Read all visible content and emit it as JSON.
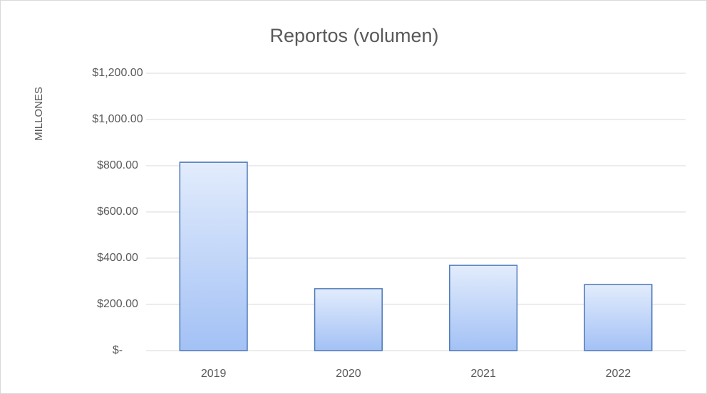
{
  "chart_data": {
    "type": "bar",
    "title": "Reportos (volumen)",
    "y_label": "MILLONES",
    "categories": [
      "2019",
      "2020",
      "2021",
      "2022"
    ],
    "values": [
      815,
      268,
      369,
      286
    ],
    "color": "#4a76b8",
    "ylim": [
      0,
      1200
    ],
    "yticks": [
      {
        "value": 0,
        "label": "$-"
      },
      {
        "value": 200,
        "label": "$200.00"
      },
      {
        "value": 400,
        "label": "$400.00"
      },
      {
        "value": 600,
        "label": "$600.00"
      },
      {
        "value": 800,
        "label": "$800.00"
      },
      {
        "value": 1000,
        "label": "$1,000.00"
      },
      {
        "value": 1200,
        "label": "$1,200.00"
      }
    ],
    "grid": true
  }
}
